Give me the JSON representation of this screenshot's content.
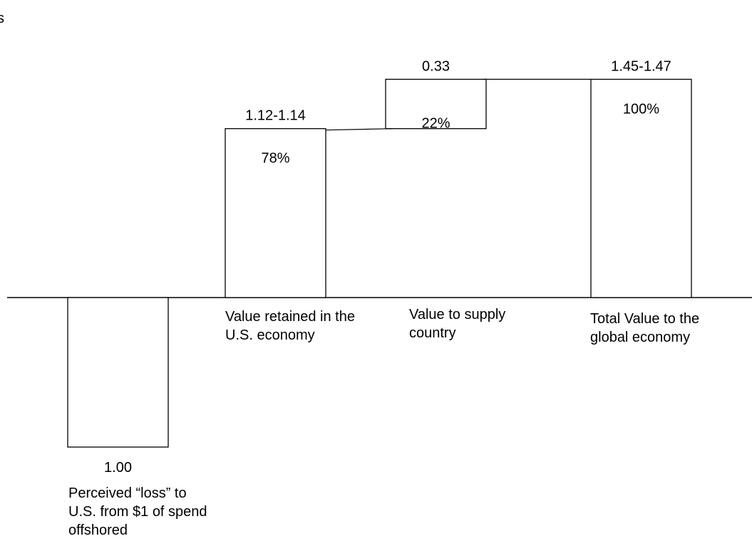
{
  "stray_text": "s",
  "chart_data": {
    "type": "bar",
    "style": "waterfall",
    "categories": [
      "Perceived “loss” to U.S. from $1 of spend offshored",
      "Value retained in the U.S. economy",
      "Value to supply country",
      "Total Value to the global economy"
    ],
    "values": [
      -1.0,
      1.13,
      0.33,
      1.46
    ],
    "value_labels": [
      "1.00",
      "1.12-1.14",
      "0.33",
      "1.45-1.47"
    ],
    "percent_labels": [
      "",
      "78%",
      "22%",
      "100%"
    ],
    "bar_starts": [
      0,
      0,
      1.13,
      0
    ],
    "title": "",
    "xlabel": "",
    "ylabel": "",
    "ylim": [
      -1.0,
      1.46
    ],
    "grid": false,
    "legend": "none",
    "colors": {
      "bar_fill": "#ffffff",
      "bar_stroke": "#000000",
      "axis": "#000000"
    }
  }
}
